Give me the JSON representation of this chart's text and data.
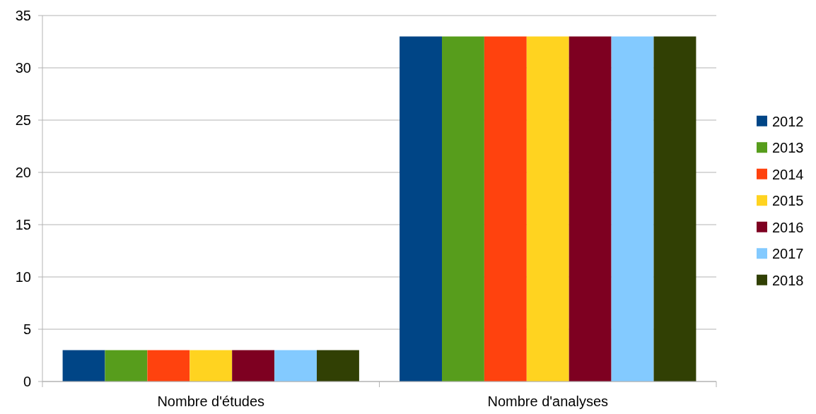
{
  "chart_data": {
    "type": "bar",
    "categories": [
      "Nombre d'études",
      "Nombre d'analyses"
    ],
    "series": [
      {
        "name": "2012",
        "color": "#004586",
        "values": [
          3,
          33
        ]
      },
      {
        "name": "2013",
        "color": "#579d1c",
        "values": [
          3,
          33
        ]
      },
      {
        "name": "2014",
        "color": "#ff420e",
        "values": [
          3,
          33
        ]
      },
      {
        "name": "2015",
        "color": "#ffd320",
        "values": [
          3,
          33
        ]
      },
      {
        "name": "2016",
        "color": "#7e0021",
        "values": [
          3,
          33
        ]
      },
      {
        "name": "2017",
        "color": "#83caff",
        "values": [
          3,
          33
        ]
      },
      {
        "name": "2018",
        "color": "#314004",
        "values": [
          3,
          33
        ]
      }
    ],
    "ylim": [
      0,
      35
    ],
    "yticks": [
      0,
      5,
      10,
      15,
      20,
      25,
      30,
      35
    ],
    "grid": "y",
    "legend": "right"
  }
}
